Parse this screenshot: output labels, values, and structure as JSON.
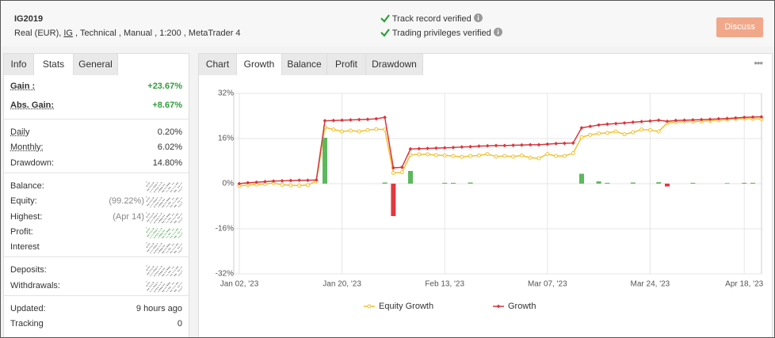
{
  "header": {
    "title": "IG2019",
    "subtitle": [
      "Real (EUR), ",
      "IG",
      " , Technical , Manual , 1:200 , MetaTrader 4"
    ],
    "verified": [
      "Track record verified",
      "Trading privileges verified"
    ],
    "button": "Discuss"
  },
  "left_tabs": {
    "items": [
      "Info",
      "Stats",
      "General"
    ],
    "active": 1
  },
  "stats": [
    [
      {
        "label": "Gain :",
        "value": "+23.67%",
        "underline": true,
        "value_color": "#2e9e3a"
      },
      {
        "label": "Abs. Gain:",
        "value": "+8.67%",
        "underline": true,
        "value_color": "#2e9e3a"
      }
    ],
    [
      {
        "label": "Daily",
        "value": "0.20%",
        "underline": true
      },
      {
        "label": "Monthly:",
        "value": "6.02%",
        "underline": true
      },
      {
        "label": "Drawdown:",
        "value": "14.80%"
      }
    ],
    [
      {
        "label": "Balance:",
        "blur": "#666666"
      },
      {
        "label": "Equity:",
        "note": "(99.22%)",
        "blur": "#666666"
      },
      {
        "label": "Highest:",
        "note": "(Apr 14)",
        "blur": "#666666"
      },
      {
        "label": "Profit:",
        "blur": "#3a9a3a"
      },
      {
        "label": "Interest",
        "blur": "#666666"
      }
    ],
    [
      {
        "label": "Deposits:",
        "blur": "#666666"
      },
      {
        "label": "Withdrawals:",
        "blur": "#666666"
      }
    ],
    [
      {
        "label": "Updated:",
        "value": "9 hours ago"
      },
      {
        "label": "Tracking",
        "value": "0"
      }
    ]
  ],
  "chart_tabs": {
    "items": [
      "Chart",
      "Growth",
      "Balance",
      "Profit",
      "Drawdown"
    ],
    "active": 1
  },
  "chart_data": {
    "type": "line",
    "categories": [
      "Jan 02, '23",
      null,
      null,
      null,
      null,
      null,
      null,
      null,
      null,
      null,
      null,
      null,
      "Jan 20, '23",
      null,
      null,
      null,
      null,
      null,
      null,
      null,
      null,
      null,
      null,
      null,
      "Feb 13, '23",
      null,
      null,
      null,
      null,
      null,
      null,
      null,
      null,
      null,
      null,
      null,
      "Mar 07, '23",
      null,
      null,
      null,
      null,
      null,
      null,
      null,
      null,
      null,
      null,
      null,
      "Mar 24, '23",
      null,
      null,
      null,
      null,
      null,
      null,
      null,
      null,
      null,
      null,
      "Apr 18, '23",
      null,
      null
    ],
    "ylim": [
      -32,
      32
    ],
    "yticks": [
      {
        "value": -32,
        "label": "-32%"
      },
      {
        "value": -16,
        "label": "-16%"
      },
      {
        "value": 0,
        "label": "0%"
      },
      {
        "value": 16,
        "label": "16%"
      },
      {
        "value": 32,
        "label": "32%"
      }
    ],
    "grid": true,
    "legend": "bottom",
    "series": [
      {
        "name": "Equity Growth",
        "color": "#f2c12e",
        "values": [
          -0.8,
          -0.5,
          -0.3,
          -0.1,
          0.2,
          -0.4,
          -0.6,
          -0.7,
          -0.5,
          0.8,
          20.0,
          19.2,
          18.5,
          18.8,
          18.5,
          19.0,
          19.3,
          19.2,
          3.8,
          4.0,
          10.2,
          10.4,
          10.4,
          10.1,
          10.0,
          9.8,
          9.5,
          9.8,
          10.0,
          10.5,
          9.6,
          9.8,
          9.6,
          10.0,
          9.2,
          9.0,
          10.5,
          9.8,
          9.8,
          10.8,
          16.5,
          17.3,
          17.8,
          18.0,
          18.5,
          17.5,
          18.2,
          19.2,
          19.0,
          18.5,
          21.5,
          21.8,
          22.0,
          22.0,
          22.1,
          22.3,
          22.5,
          22.7,
          23.0,
          23.1,
          23.0,
          22.9
        ]
      },
      {
        "name": "Growth",
        "color": "#d9363e",
        "values": [
          0,
          0.3,
          0.5,
          0.7,
          0.9,
          1.0,
          1.1,
          1.2,
          1.2,
          1.3,
          22.3,
          22.4,
          22.5,
          22.6,
          22.7,
          22.8,
          23.0,
          23.5,
          5.6,
          5.8,
          12.3,
          12.4,
          12.5,
          12.6,
          12.7,
          12.8,
          13.0,
          13.1,
          13.3,
          13.4,
          13.5,
          13.5,
          13.6,
          13.7,
          13.8,
          13.8,
          14.0,
          14.2,
          14.3,
          14.4,
          19.8,
          20.3,
          20.8,
          21.1,
          21.3,
          21.5,
          21.8,
          22.0,
          22.2,
          22.5,
          22.1,
          22.4,
          22.5,
          22.6,
          22.7,
          22.8,
          23.0,
          23.1,
          23.3,
          23.5,
          23.6,
          23.67
        ]
      },
      {
        "type": "bar",
        "color": "#5cb85c",
        "negative_color": "#e0393e",
        "values": [
          null,
          null,
          null,
          null,
          null,
          null,
          null,
          null,
          null,
          null,
          16.3,
          null,
          null,
          null,
          null,
          null,
          null,
          0.4,
          -11.5,
          null,
          4.5,
          null,
          null,
          null,
          0.3,
          0.3,
          null,
          0.4,
          null,
          null,
          null,
          null,
          null,
          null,
          null,
          null,
          null,
          null,
          null,
          null,
          3.5,
          null,
          0.8,
          0.3,
          null,
          null,
          0.4,
          null,
          null,
          0.5,
          -1.0,
          null,
          null,
          0.3,
          null,
          null,
          null,
          0.2,
          null,
          0.3,
          0.3,
          null
        ]
      }
    ]
  }
}
